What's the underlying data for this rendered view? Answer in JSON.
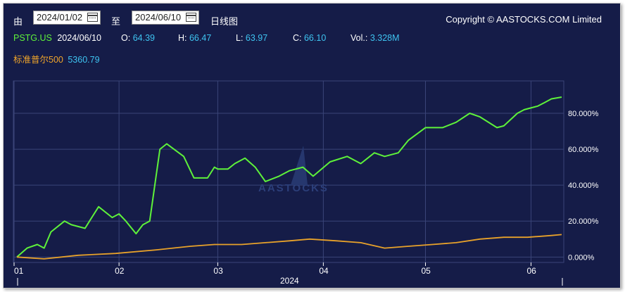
{
  "toolbar": {
    "from_label": "由",
    "from_date": "2024/01/02",
    "to_label": "至",
    "to_date": "2024/06/10",
    "chart_type_label": "日线图",
    "copyright": "Copyright © AASTOCKS.COM Limited"
  },
  "quote": {
    "symbol": "PSTG.US",
    "date": "2024/06/10",
    "open_label": "O:",
    "open": "64.39",
    "high_label": "H:",
    "high": "66.47",
    "low_label": "L:",
    "low": "63.97",
    "close_label": "C:",
    "close": "66.10",
    "volume_label": "Vol.:",
    "volume": "3.328M"
  },
  "index": {
    "name": "标准普尔500",
    "value": "5360.79"
  },
  "watermark": "AASTOCKS",
  "colors": {
    "background": "#151c48",
    "stock_line": "#5ef23a",
    "index_line": "#e8a22a",
    "grid": "#3a4478",
    "axis_text": "#ffffff",
    "value_text": "#3ec3f0"
  },
  "chart_data": {
    "type": "line",
    "x_tick_labels": [
      "01",
      "02",
      "03",
      "04",
      "05",
      "06"
    ],
    "x_ticks_month_index": [
      1,
      2,
      3,
      4,
      5,
      6
    ],
    "x_year_label": "2024",
    "y_tick_labels": [
      "0.000%",
      "20.000%",
      "40.000%",
      "60.000%",
      "80.000%"
    ],
    "y_ticks": [
      0,
      20,
      40,
      60,
      80
    ],
    "ylim": [
      -3,
      98
    ],
    "xlim": [
      "2024-01-02",
      "2024-06-10"
    ],
    "series": [
      {
        "name": "PSTG.US",
        "x": [
          "2024-01-02",
          "2024-01-05",
          "2024-01-08",
          "2024-01-10",
          "2024-01-12",
          "2024-01-16",
          "2024-01-18",
          "2024-01-22",
          "2024-01-24",
          "2024-01-26",
          "2024-01-30",
          "2024-02-01",
          "2024-02-03",
          "2024-02-06",
          "2024-02-08",
          "2024-02-10",
          "2024-02-13",
          "2024-02-15",
          "2024-02-20",
          "2024-02-23",
          "2024-02-27",
          "2024-02-29",
          "2024-03-01",
          "2024-03-04",
          "2024-03-06",
          "2024-03-09",
          "2024-03-12",
          "2024-03-15",
          "2024-03-19",
          "2024-03-22",
          "2024-03-26",
          "2024-03-29",
          "2024-04-03",
          "2024-04-08",
          "2024-04-12",
          "2024-04-16",
          "2024-04-19",
          "2024-04-23",
          "2024-04-26",
          "2024-05-01",
          "2024-05-06",
          "2024-05-10",
          "2024-05-14",
          "2024-05-17",
          "2024-05-22",
          "2024-05-24",
          "2024-05-28",
          "2024-05-30",
          "2024-06-03",
          "2024-06-05",
          "2024-06-07",
          "2024-06-10"
        ],
        "y": [
          0,
          5,
          7,
          5,
          14,
          20,
          18,
          16,
          22,
          28,
          22,
          24,
          20,
          13,
          18,
          20,
          60,
          63,
          56,
          44,
          44,
          50,
          49,
          49,
          52,
          55,
          50,
          42,
          45,
          48,
          50,
          45,
          53,
          56,
          52,
          58,
          56,
          58,
          65,
          72,
          72,
          75,
          80,
          78,
          72,
          73,
          80,
          82,
          84,
          86,
          88,
          89
        ]
      },
      {
        "name": "标准普尔500",
        "x": [
          "2024-01-02",
          "2024-01-10",
          "2024-01-20",
          "2024-01-31",
          "2024-02-12",
          "2024-02-22",
          "2024-02-29",
          "2024-03-08",
          "2024-03-15",
          "2024-03-22",
          "2024-03-28",
          "2024-04-05",
          "2024-04-12",
          "2024-04-19",
          "2024-04-26",
          "2024-05-03",
          "2024-05-10",
          "2024-05-17",
          "2024-05-24",
          "2024-05-31",
          "2024-06-07",
          "2024-06-10"
        ],
        "y": [
          0,
          -1,
          1,
          2,
          4,
          6,
          7,
          7,
          8,
          9,
          10,
          9,
          8,
          5,
          6,
          7,
          8,
          10,
          11,
          11,
          12,
          12.5
        ]
      }
    ]
  }
}
